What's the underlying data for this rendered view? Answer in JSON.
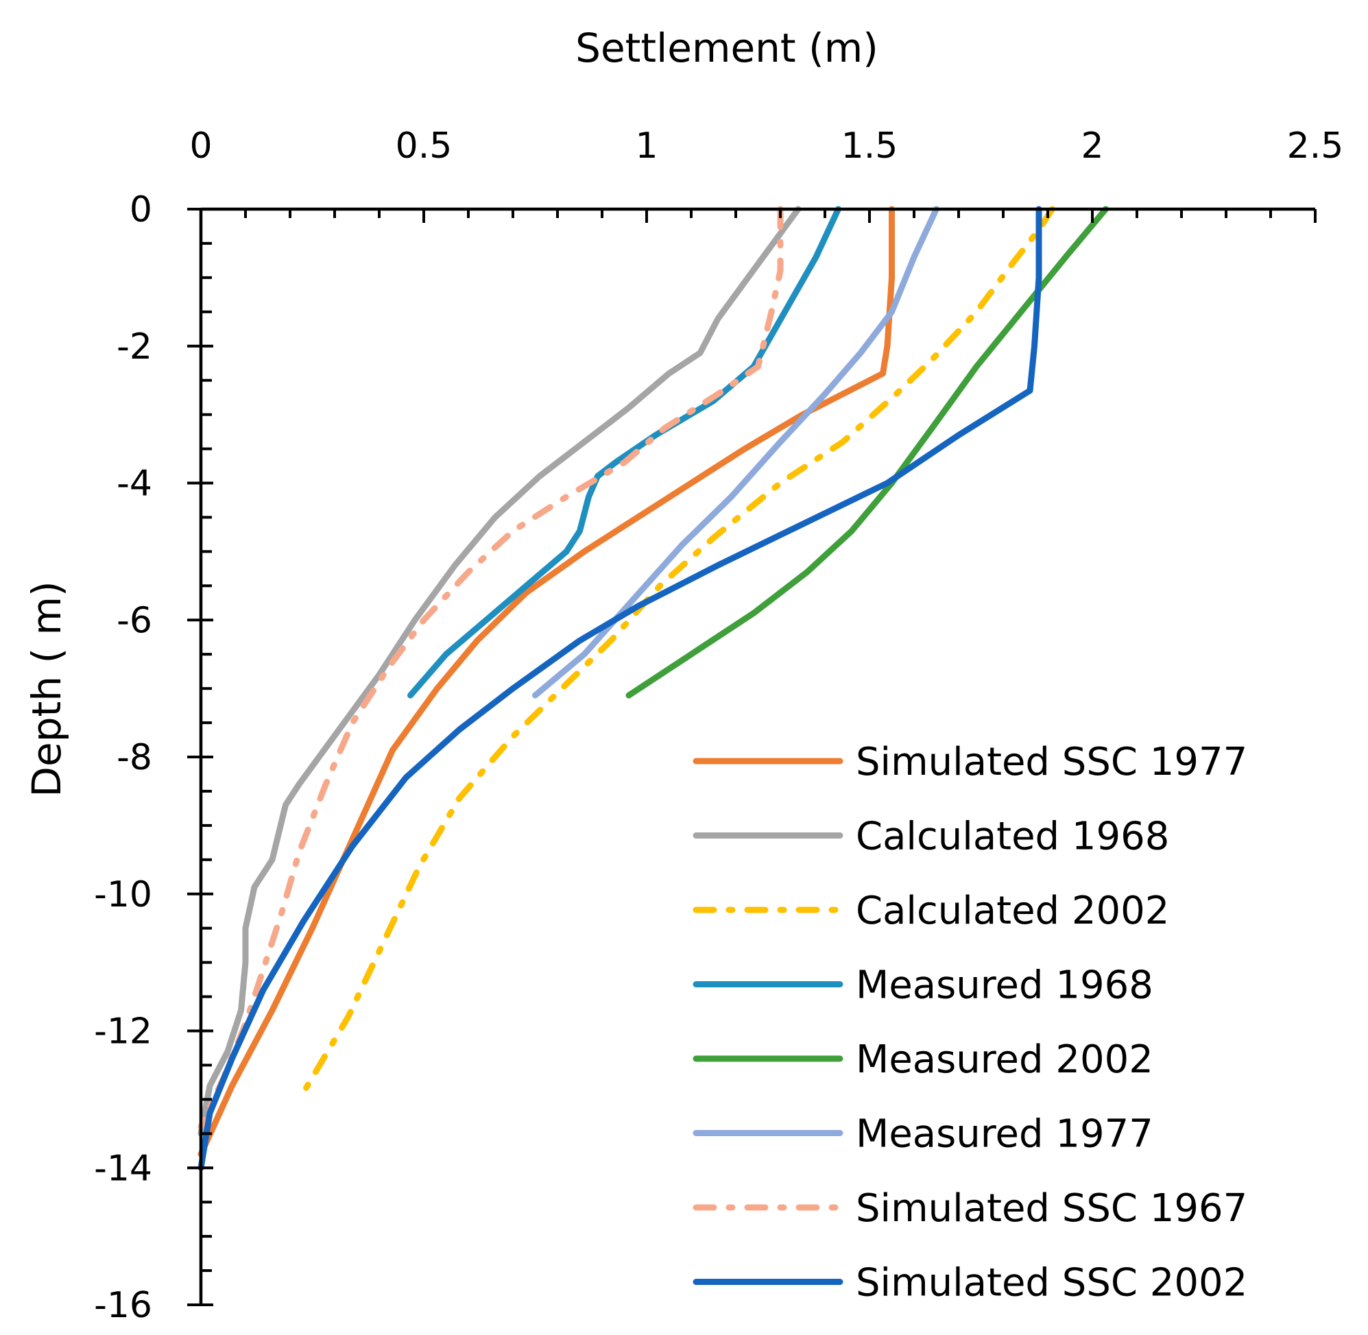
{
  "chart_data": {
    "type": "line",
    "xlabel": "Settlement (m)",
    "ylabel": "Depth ( m)",
    "xlim": [
      0,
      2.5
    ],
    "ylim": [
      -16,
      0
    ],
    "x_ticks": [
      "0",
      "0.5",
      "1",
      "1.5",
      "2",
      "2.5"
    ],
    "x_tick_values": [
      0,
      0.5,
      1,
      1.5,
      2,
      2.5
    ],
    "y_ticks": [
      "0",
      "-2",
      "-4",
      "-6",
      "-8",
      "-10",
      "-12",
      "-14",
      "-16"
    ],
    "y_tick_values": [
      0,
      -2,
      -4,
      -6,
      -8,
      -10,
      -12,
      -14,
      -16
    ],
    "legend_position": "bottom-right",
    "series": [
      {
        "name": "Simulated SSC 1977",
        "color": "#ED7D31",
        "style": "solid",
        "points": [
          [
            1.55,
            0
          ],
          [
            1.55,
            -1.0
          ],
          [
            1.54,
            -2.0
          ],
          [
            1.53,
            -2.4
          ],
          [
            1.35,
            -3.0
          ],
          [
            1.22,
            -3.5
          ],
          [
            1.1,
            -4.0
          ],
          [
            0.98,
            -4.5
          ],
          [
            0.86,
            -5.0
          ],
          [
            0.73,
            -5.6
          ],
          [
            0.62,
            -6.3
          ],
          [
            0.53,
            -7.0
          ],
          [
            0.43,
            -7.9
          ],
          [
            0.34,
            -9.2
          ],
          [
            0.25,
            -10.5
          ],
          [
            0.16,
            -11.7
          ],
          [
            0.07,
            -12.8
          ],
          [
            0.0,
            -13.8
          ]
        ]
      },
      {
        "name": "Calculated 1968",
        "color": "#A5A5A5",
        "style": "solid",
        "points": [
          [
            1.34,
            0
          ],
          [
            1.25,
            -0.8
          ],
          [
            1.16,
            -1.6
          ],
          [
            1.12,
            -2.1
          ],
          [
            1.05,
            -2.4
          ],
          [
            0.96,
            -2.9
          ],
          [
            0.84,
            -3.5
          ],
          [
            0.76,
            -3.9
          ],
          [
            0.66,
            -4.5
          ],
          [
            0.57,
            -5.2
          ],
          [
            0.48,
            -6.0
          ],
          [
            0.4,
            -6.8
          ],
          [
            0.31,
            -7.6
          ],
          [
            0.22,
            -8.4
          ],
          [
            0.19,
            -8.7
          ],
          [
            0.16,
            -9.5
          ],
          [
            0.12,
            -9.9
          ],
          [
            0.1,
            -10.5
          ],
          [
            0.1,
            -11.0
          ],
          [
            0.09,
            -11.7
          ],
          [
            0.06,
            -12.3
          ],
          [
            0.02,
            -12.8
          ],
          [
            0.0,
            -13.5
          ]
        ]
      },
      {
        "name": "Calculated 2002",
        "color": "#FFC000",
        "style": "dashdot",
        "points": [
          [
            1.91,
            0
          ],
          [
            1.88,
            -0.3
          ],
          [
            1.82,
            -0.8
          ],
          [
            1.74,
            -1.5
          ],
          [
            1.64,
            -2.2
          ],
          [
            1.56,
            -2.7
          ],
          [
            1.44,
            -3.4
          ],
          [
            1.3,
            -4.0
          ],
          [
            1.15,
            -4.8
          ],
          [
            1.03,
            -5.5
          ],
          [
            0.92,
            -6.3
          ],
          [
            0.81,
            -7.0
          ],
          [
            0.7,
            -7.7
          ],
          [
            0.58,
            -8.6
          ],
          [
            0.49,
            -9.6
          ],
          [
            0.41,
            -10.7
          ],
          [
            0.33,
            -11.8
          ],
          [
            0.23,
            -12.9
          ]
        ]
      },
      {
        "name": "Measured 1968",
        "color": "#1F8FC0",
        "style": "solid",
        "points": [
          [
            1.43,
            0
          ],
          [
            1.38,
            -0.7
          ],
          [
            1.31,
            -1.5
          ],
          [
            1.24,
            -2.3
          ],
          [
            1.15,
            -2.8
          ],
          [
            1.02,
            -3.3
          ],
          [
            0.93,
            -3.7
          ],
          [
            0.89,
            -3.9
          ],
          [
            0.87,
            -4.2
          ],
          [
            0.85,
            -4.7
          ],
          [
            0.82,
            -5.0
          ],
          [
            0.73,
            -5.5
          ],
          [
            0.64,
            -6.0
          ],
          [
            0.55,
            -6.5
          ],
          [
            0.47,
            -7.1
          ]
        ]
      },
      {
        "name": "Measured 2002",
        "color": "#3F9F3A",
        "style": "solid",
        "points": [
          [
            2.03,
            0
          ],
          [
            1.94,
            -0.7
          ],
          [
            1.84,
            -1.5
          ],
          [
            1.74,
            -2.3
          ],
          [
            1.64,
            -3.2
          ],
          [
            1.55,
            -4.0
          ],
          [
            1.46,
            -4.7
          ],
          [
            1.36,
            -5.3
          ],
          [
            1.24,
            -5.9
          ],
          [
            1.1,
            -6.5
          ],
          [
            0.96,
            -7.1
          ]
        ]
      },
      {
        "name": "Measured 1977",
        "color": "#8EA9DB",
        "style": "solid",
        "points": [
          [
            1.65,
            0
          ],
          [
            1.6,
            -0.7
          ],
          [
            1.55,
            -1.5
          ],
          [
            1.48,
            -2.1
          ],
          [
            1.4,
            -2.7
          ],
          [
            1.3,
            -3.4
          ],
          [
            1.19,
            -4.2
          ],
          [
            1.08,
            -4.9
          ],
          [
            0.97,
            -5.7
          ],
          [
            0.86,
            -6.5
          ],
          [
            0.75,
            -7.1
          ]
        ]
      },
      {
        "name": "Simulated SSC 1967",
        "color": "#F8A88A",
        "style": "dashdot",
        "points": [
          [
            1.3,
            0
          ],
          [
            1.3,
            -0.9
          ],
          [
            1.28,
            -1.5
          ],
          [
            1.25,
            -2.3
          ],
          [
            1.16,
            -2.7
          ],
          [
            1.04,
            -3.2
          ],
          [
            0.95,
            -3.7
          ],
          [
            0.82,
            -4.2
          ],
          [
            0.7,
            -4.7
          ],
          [
            0.6,
            -5.3
          ],
          [
            0.5,
            -6.0
          ],
          [
            0.42,
            -6.7
          ],
          [
            0.34,
            -7.5
          ],
          [
            0.28,
            -8.4
          ],
          [
            0.22,
            -9.4
          ],
          [
            0.18,
            -10.3
          ],
          [
            0.14,
            -11.1
          ],
          [
            0.1,
            -11.9
          ],
          [
            0.05,
            -12.7
          ],
          [
            0.0,
            -13.4
          ]
        ]
      },
      {
        "name": "Simulated SSC 2002",
        "color": "#1565C0",
        "style": "solid",
        "points": [
          [
            1.88,
            0
          ],
          [
            1.88,
            -1.0
          ],
          [
            1.87,
            -2.0
          ],
          [
            1.86,
            -2.65
          ],
          [
            1.7,
            -3.3
          ],
          [
            1.54,
            -4.0
          ],
          [
            1.35,
            -4.6
          ],
          [
            1.16,
            -5.2
          ],
          [
            0.98,
            -5.8
          ],
          [
            0.85,
            -6.3
          ],
          [
            0.7,
            -7.0
          ],
          [
            0.58,
            -7.6
          ],
          [
            0.46,
            -8.3
          ],
          [
            0.34,
            -9.3
          ],
          [
            0.23,
            -10.4
          ],
          [
            0.14,
            -11.4
          ],
          [
            0.07,
            -12.4
          ],
          [
            0.02,
            -13.2
          ],
          [
            0.0,
            -14.0
          ]
        ]
      }
    ]
  }
}
